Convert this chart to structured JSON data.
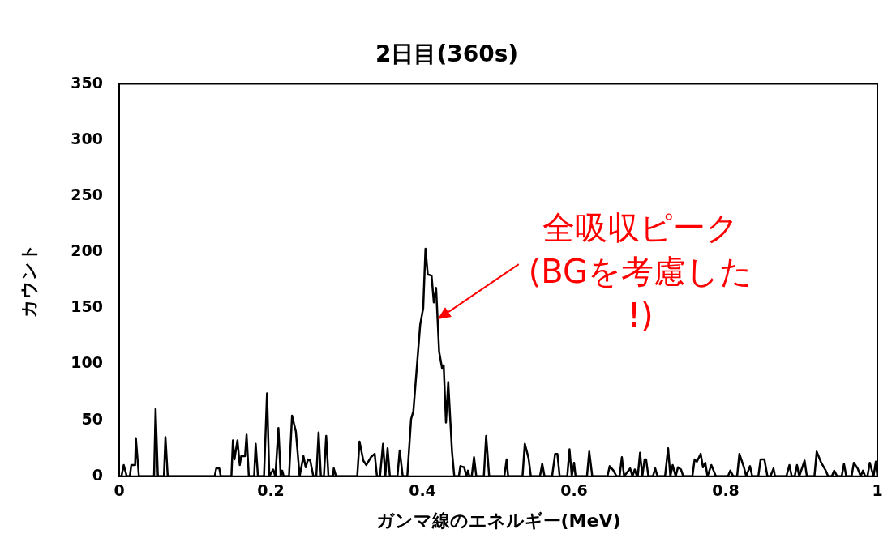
{
  "chart_data": {
    "type": "line",
    "title": "2日目(360s)",
    "xlabel": "ガンマ線のエネルギー(MeV)",
    "ylabel": "カウント",
    "xlim": [
      0,
      1
    ],
    "xticks": [
      0,
      0.2,
      0.4,
      0.6,
      0.8,
      1
    ],
    "ylim": [
      0,
      350
    ],
    "yticks": [
      0,
      50,
      100,
      150,
      200,
      250,
      300,
      350
    ],
    "grid": false,
    "legend": false,
    "marker": "none",
    "line_style": "solid",
    "annotations": [
      {
        "text": "全吸収ピーク\n(BGを考慮した\n!)",
        "x": 0.42,
        "y": 140
      }
    ],
    "series": [
      {
        "color": "#000000",
        "x": [
          0,
          0.003,
          0.006,
          0.01,
          0.014,
          0.016,
          0.021,
          0.022,
          0.026,
          0.046,
          0.048,
          0.051,
          0.059,
          0.061,
          0.064,
          0.126,
          0.128,
          0.132,
          0.134,
          0.148,
          0.15,
          0.152,
          0.156,
          0.159,
          0.161,
          0.166,
          0.168,
          0.171,
          0.178,
          0.18,
          0.183,
          0.191,
          0.195,
          0.198,
          0.203,
          0.206,
          0.21,
          0.213,
          0.215,
          0.217,
          0.224,
          0.228,
          0.233,
          0.238,
          0.243,
          0.246,
          0.249,
          0.252,
          0.256,
          0.26,
          0.263,
          0.266,
          0.27,
          0.273,
          0.276,
          0.282,
          0.283,
          0.286,
          0.314,
          0.317,
          0.322,
          0.326,
          0.332,
          0.337,
          0.34,
          0.344,
          0.348,
          0.351,
          0.354,
          0.357,
          0.367,
          0.37,
          0.374,
          0.38,
          0.385,
          0.388,
          0.397,
          0.401,
          0.404,
          0.407,
          0.412,
          0.415,
          0.418,
          0.422,
          0.426,
          0.428,
          0.431,
          0.434,
          0.439,
          0.442,
          0.448,
          0.45,
          0.455,
          0.458,
          0.46,
          0.462,
          0.465,
          0.468,
          0.471,
          0.481,
          0.484,
          0.488,
          0.508,
          0.511,
          0.513,
          0.532,
          0.535,
          0.54,
          0.543,
          0.555,
          0.558,
          0.561,
          0.571,
          0.575,
          0.578,
          0.581,
          0.591,
          0.594,
          0.597,
          0.6,
          0.602,
          0.617,
          0.62,
          0.624,
          0.644,
          0.647,
          0.652,
          0.656,
          0.66,
          0.663,
          0.666,
          0.674,
          0.677,
          0.68,
          0.683,
          0.684,
          0.687,
          0.69,
          0.693,
          0.695,
          0.698,
          0.704,
          0.707,
          0.71,
          0.72,
          0.724,
          0.727,
          0.73,
          0.734,
          0.737,
          0.741,
          0.744,
          0.756,
          0.759,
          0.762,
          0.767,
          0.77,
          0.773,
          0.776,
          0.781,
          0.784,
          0.787,
          0.803,
          0.806,
          0.81,
          0.815,
          0.818,
          0.824,
          0.827,
          0.832,
          0.835,
          0.843,
          0.846,
          0.851,
          0.855,
          0.859,
          0.863,
          0.865,
          0.88,
          0.884,
          0.887,
          0.891,
          0.894,
          0.897,
          0.904,
          0.907,
          0.917,
          0.92,
          0.926,
          0.932,
          0.935,
          0.94,
          0.943,
          0.947,
          0.953,
          0.956,
          0.959,
          0.966,
          0.969,
          0.974,
          0.978,
          0.981,
          0.984,
          0.987,
          0.99,
          0.995,
          0.998,
          1.0
        ],
        "values": [
          0,
          0,
          10,
          0,
          0,
          10,
          10,
          34,
          0,
          0,
          60,
          0,
          0,
          35,
          0,
          0,
          7,
          7,
          0,
          0,
          32,
          15,
          32,
          10,
          18,
          18,
          37,
          0,
          0,
          29,
          0,
          0,
          74,
          0,
          6,
          0,
          43,
          0,
          5,
          0,
          0,
          54,
          40,
          0,
          18,
          8,
          15,
          14,
          0,
          0,
          39,
          0,
          0,
          36,
          0,
          0,
          7,
          0,
          0,
          31,
          14,
          10,
          17,
          20,
          0,
          0,
          29,
          0,
          25,
          0,
          0,
          23,
          0,
          0,
          51,
          58,
          135,
          150,
          203,
          180,
          179,
          155,
          168,
          111,
          96,
          99,
          48,
          84,
          22,
          0,
          0,
          9,
          8,
          0,
          5,
          0,
          0,
          17,
          0,
          0,
          36,
          0,
          0,
          15,
          0,
          0,
          29,
          16,
          0,
          0,
          11,
          0,
          0,
          20,
          20,
          0,
          0,
          24,
          0,
          12,
          0,
          0,
          22,
          0,
          0,
          9,
          5,
          0,
          0,
          17,
          0,
          7,
          0,
          6,
          0,
          0,
          21,
          0,
          15,
          15,
          0,
          0,
          7,
          0,
          0,
          25,
          0,
          10,
          0,
          8,
          6,
          0,
          0,
          15,
          13,
          20,
          8,
          12,
          0,
          10,
          5,
          0,
          0,
          5,
          0,
          0,
          20,
          8,
          0,
          9,
          0,
          0,
          15,
          15,
          0,
          0,
          7,
          0,
          0,
          10,
          0,
          0,
          10,
          0,
          14,
          0,
          0,
          22,
          12,
          5,
          0,
          0,
          5,
          0,
          0,
          11,
          0,
          0,
          12,
          7,
          0,
          5,
          0,
          0,
          12,
          0,
          13,
          0
        ]
      }
    ]
  }
}
